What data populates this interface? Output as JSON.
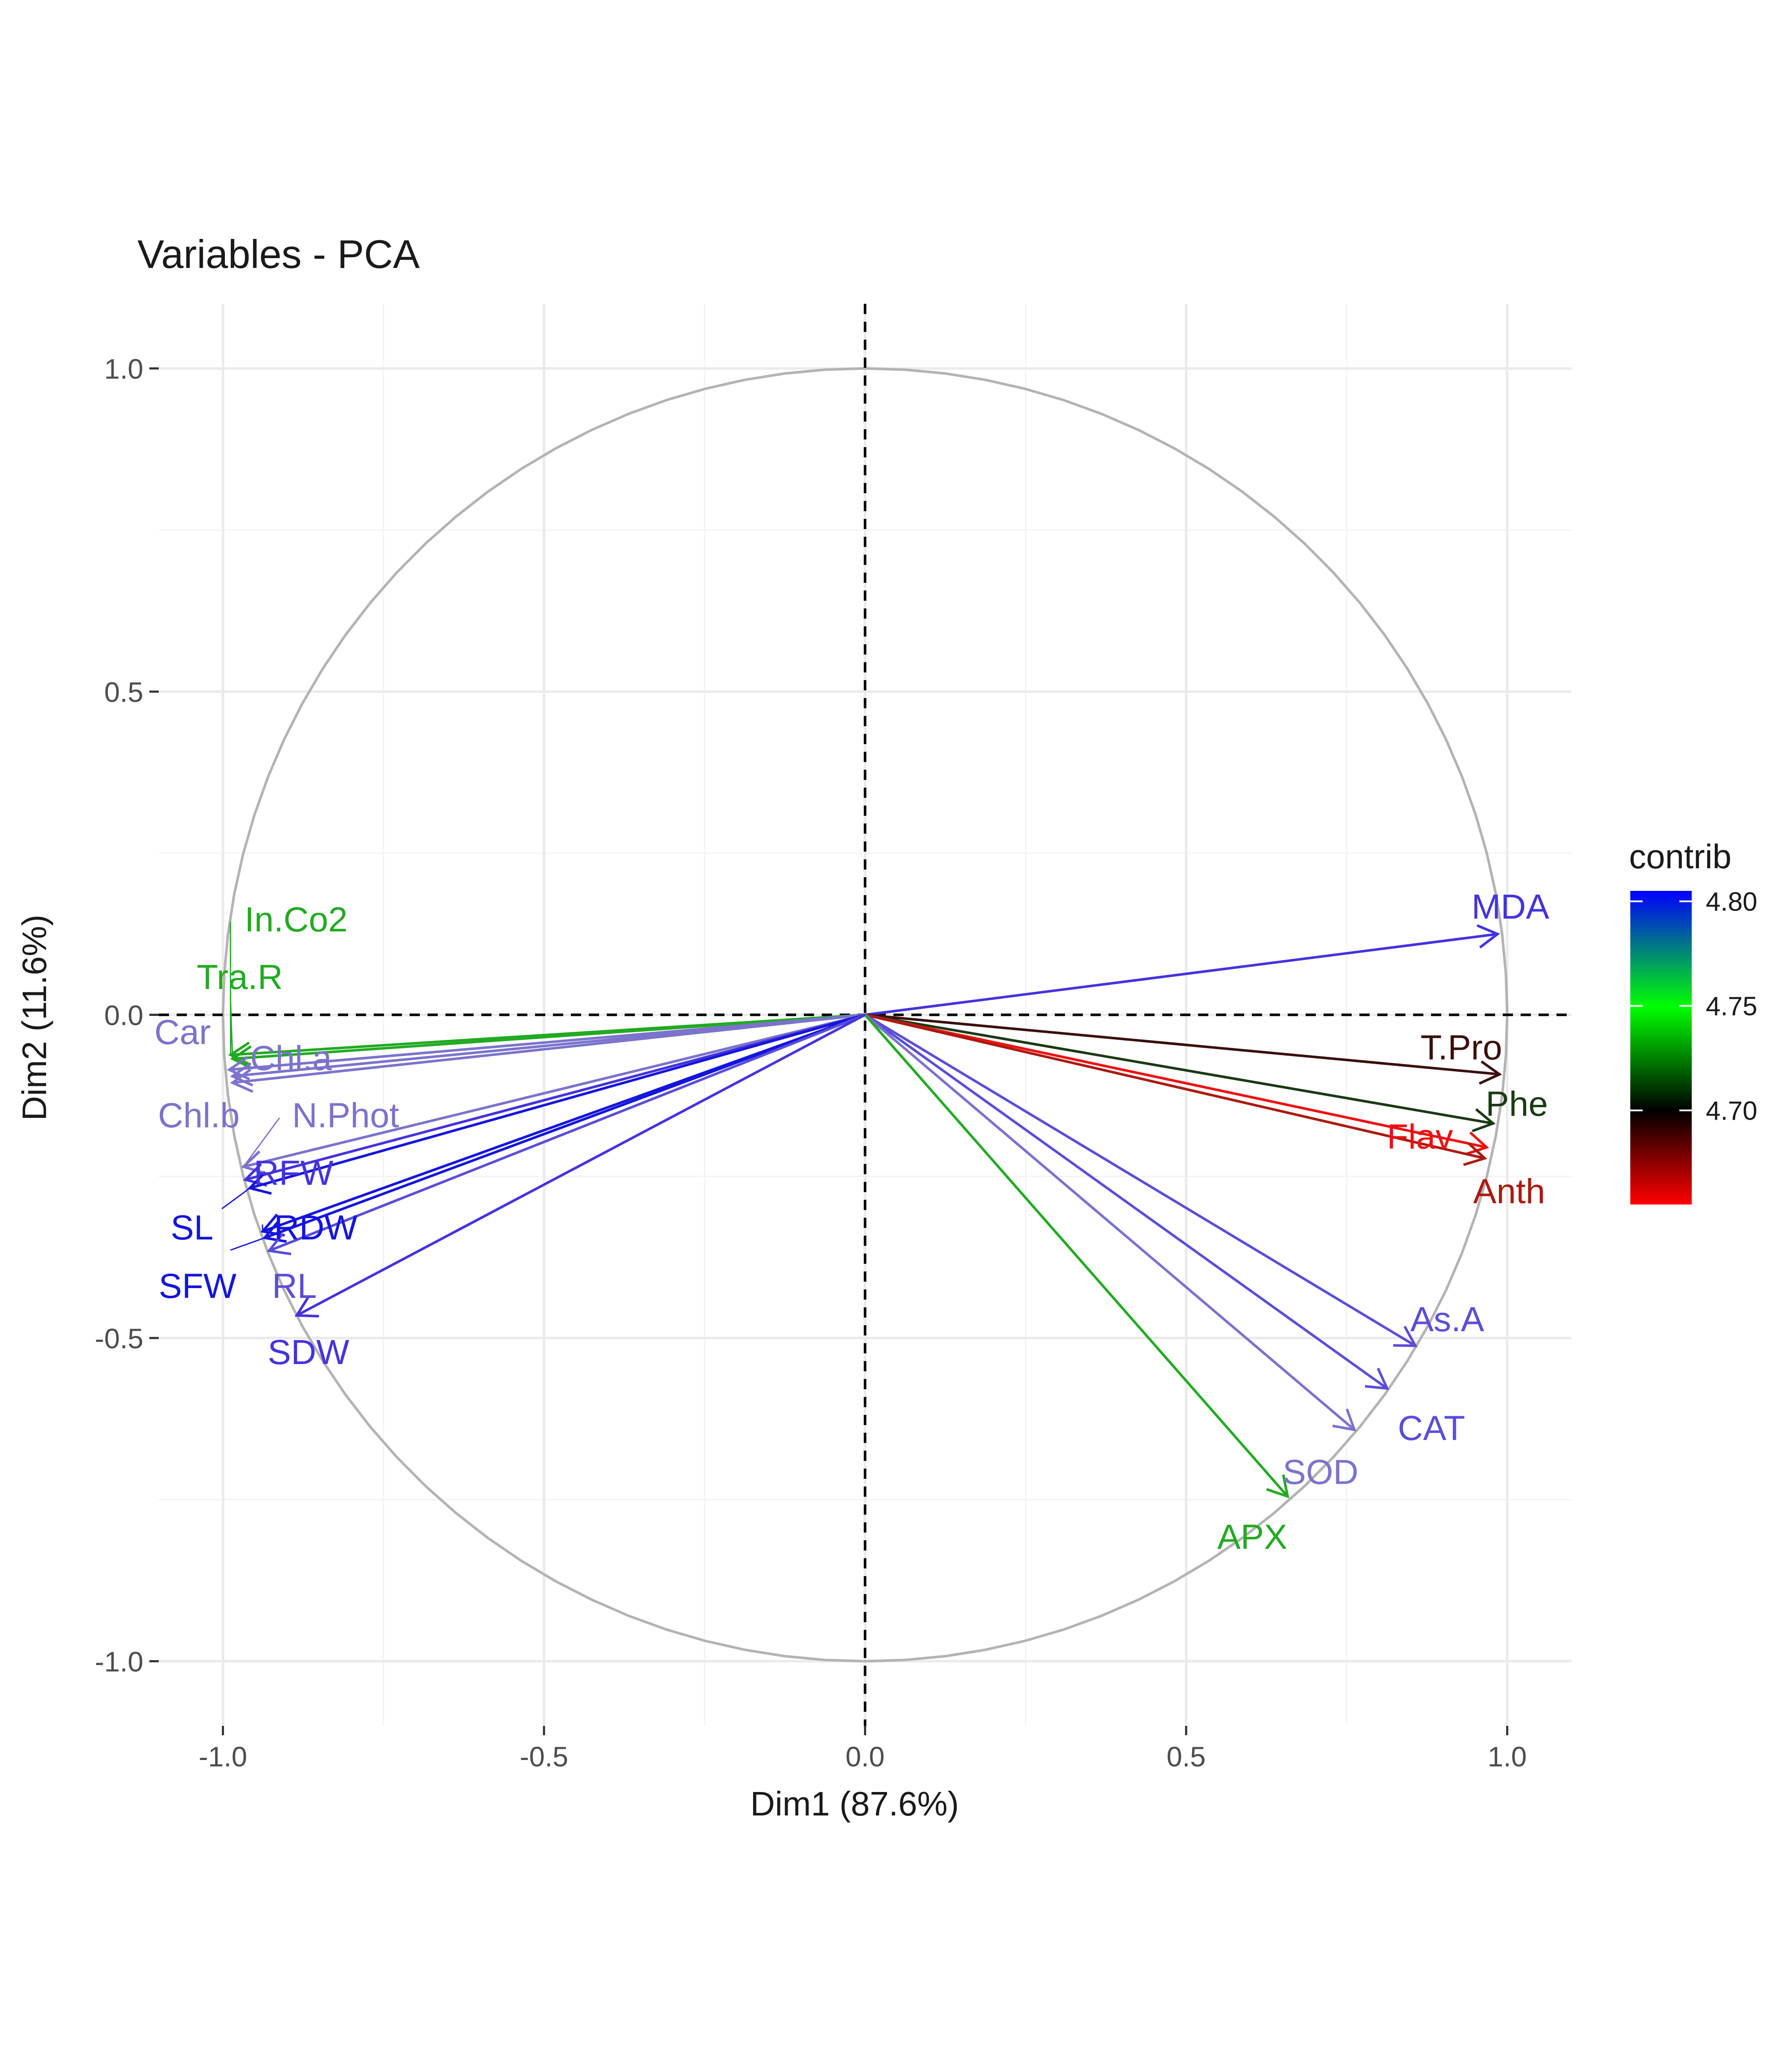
{
  "chart_data": {
    "type": "scatter",
    "title": "Variables - PCA",
    "xlabel": "Dim1 (87.6%)",
    "ylabel": "Dim2 (11.6%)",
    "xlim": [
      -1.1,
      1.1
    ],
    "ylim": [
      -1.1,
      1.1
    ],
    "x_ticks": [
      -1.0,
      -0.5,
      0.0,
      0.5,
      1.0
    ],
    "x_tick_labels": [
      "-1.0",
      "-0.5",
      "0.0",
      "0.5",
      "1.0"
    ],
    "y_ticks": [
      -1.0,
      -0.5,
      0.0,
      0.5,
      1.0
    ],
    "y_tick_labels": [
      "-1.0",
      "-0.5",
      "0.0",
      "0.5",
      "1.0"
    ],
    "grid": true,
    "reference_lines": {
      "x": 0,
      "y": 0,
      "style": "dashed"
    },
    "unit_circle": true,
    "legend": {
      "title": "contrib",
      "placement": "right",
      "type": "colorbar",
      "range": [
        4.655,
        4.805
      ],
      "ticks": [
        4.7,
        4.75,
        4.8
      ],
      "tick_labels": [
        "4.70",
        "4.75",
        "4.80"
      ],
      "gradient": [
        "#ff0000",
        "#000000",
        "#00ff00",
        "#0000ff"
      ]
    },
    "variables": [
      {
        "name": "MDA",
        "x": 0.985,
        "y": 0.125,
        "color": "#4433dd"
      },
      {
        "name": "T.Pro",
        "x": 0.988,
        "y": -0.092,
        "color": "#3a0f0f"
      },
      {
        "name": "Phe",
        "x": 0.978,
        "y": -0.168,
        "color": "#1a3a14"
      },
      {
        "name": "Flav",
        "x": 0.968,
        "y": -0.205,
        "color": "#ee1111"
      },
      {
        "name": "Anth",
        "x": 0.965,
        "y": -0.222,
        "color": "#aa1a11"
      },
      {
        "name": "As.A",
        "x": 0.857,
        "y": -0.512,
        "color": "#5a4ed8"
      },
      {
        "name": "CAT",
        "x": 0.813,
        "y": -0.578,
        "color": "#5a4ed8"
      },
      {
        "name": "SOD",
        "x": 0.762,
        "y": -0.642,
        "color": "#7b73cc"
      },
      {
        "name": "APX",
        "x": 0.658,
        "y": -0.745,
        "color": "#22aa22"
      },
      {
        "name": "In.Co2",
        "x": -0.988,
        "y": -0.062,
        "color": "#22aa22"
      },
      {
        "name": "Tra.R",
        "x": -0.985,
        "y": -0.068,
        "color": "#22aa22"
      },
      {
        "name": "Car",
        "x": -0.99,
        "y": -0.085,
        "color": "#7b73cc"
      },
      {
        "name": "Chl.a",
        "x": -0.985,
        "y": -0.095,
        "color": "#7b73cc"
      },
      {
        "name": "Chl.b",
        "x": -0.985,
        "y": -0.105,
        "color": "#7b73cc"
      },
      {
        "name": "N.Phot",
        "x": -0.968,
        "y": -0.235,
        "color": "#7b73cc"
      },
      {
        "name": "RFW",
        "x": -0.965,
        "y": -0.255,
        "color": "#4433dd"
      },
      {
        "name": "SL",
        "x": -0.958,
        "y": -0.268,
        "color": "#1515dd"
      },
      {
        "name": "RDW",
        "x": -0.938,
        "y": -0.335,
        "color": "#1515dd"
      },
      {
        "name": "SFW",
        "x": -0.935,
        "y": -0.345,
        "color": "#1515dd"
      },
      {
        "name": "RL",
        "x": -0.928,
        "y": -0.365,
        "color": "#5a4ed8"
      },
      {
        "name": "SDW",
        "x": -0.885,
        "y": -0.465,
        "color": "#4433dd"
      }
    ]
  }
}
